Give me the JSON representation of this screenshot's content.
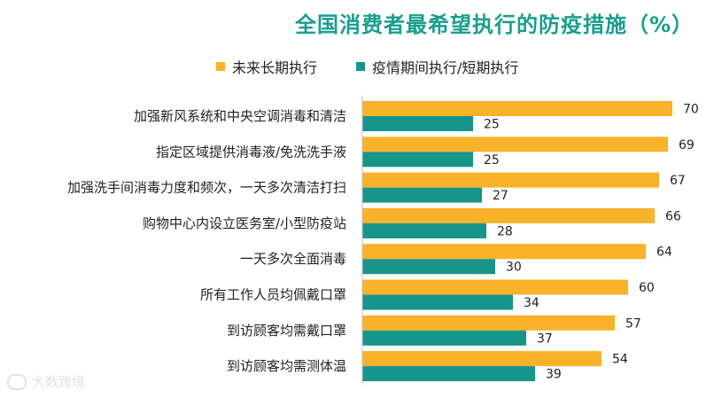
{
  "colors": {
    "title": "#1a9e8f",
    "long_term": "#f9b22a",
    "short_term": "#18958a"
  },
  "watermark": {
    "text": "大数跨境"
  },
  "chart_data": {
    "type": "bar",
    "orientation": "horizontal",
    "title": "全国消费者最希望执行的防疫措施（%）",
    "categories": [
      "加强新风系统和中央空调消毒和清洁",
      "指定区域提供消毒液/免洗洗手液",
      "加强洗手间消毒力度和频次，一天多次清洁打扫",
      "购物中心内设立医务室/小型防疫站",
      "一天多次全面消毒",
      "所有工作人员均佩戴口罩",
      "到访顾客均需戴口罩",
      "到访顾客均需测体温"
    ],
    "series": [
      {
        "name": "未来长期执行",
        "values": [
          70,
          69,
          67,
          66,
          64,
          60,
          57,
          54
        ]
      },
      {
        "name": "疫情期间执行/短期执行",
        "values": [
          25,
          25,
          27,
          28,
          30,
          34,
          37,
          39
        ]
      }
    ],
    "xlim": [
      0,
      100
    ],
    "grid": false,
    "legend_position": "top-center",
    "data_labels": true
  }
}
